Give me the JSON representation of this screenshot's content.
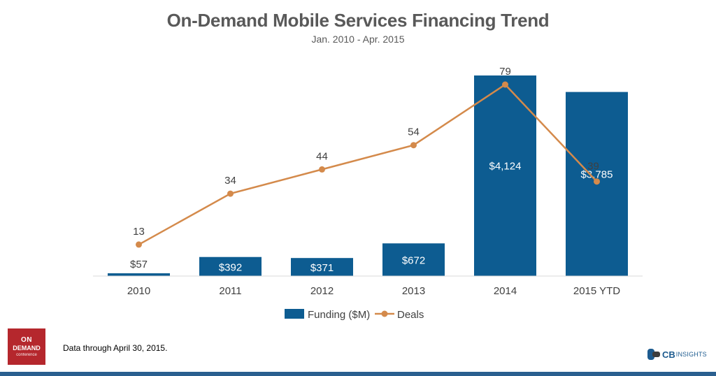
{
  "chart_data": {
    "type": "bar",
    "title": "On-Demand Mobile Services Financing Trend",
    "subtitle": "Jan. 2010 - Apr. 2015",
    "categories": [
      "2010",
      "2011",
      "2012",
      "2013",
      "2014",
      "2015 YTD"
    ],
    "series": [
      {
        "name": "Funding ($M)",
        "type": "bar",
        "color": "#0d5c91",
        "values": [
          57,
          392,
          371,
          672,
          4124,
          3785
        ],
        "labels": [
          "$57",
          "$392",
          "$371",
          "$672",
          "$4,124",
          "$3,785"
        ]
      },
      {
        "name": "Deals",
        "type": "line",
        "color": "#d48a4b",
        "values": [
          13,
          34,
          44,
          54,
          79,
          39
        ],
        "labels": [
          "13",
          "34",
          "44",
          "54",
          "79",
          "39"
        ]
      }
    ],
    "ylim_funding": [
      0,
      4124
    ],
    "ylim_deals": [
      0,
      82
    ],
    "grid": false,
    "legend_position": "bottom"
  },
  "footnote": "Data through April 30, 2015.",
  "badge": {
    "line1": "ON",
    "line2": "DEMAND",
    "line3": "conference"
  },
  "brand": {
    "mark": "CB",
    "name": "INSIGHTS"
  }
}
